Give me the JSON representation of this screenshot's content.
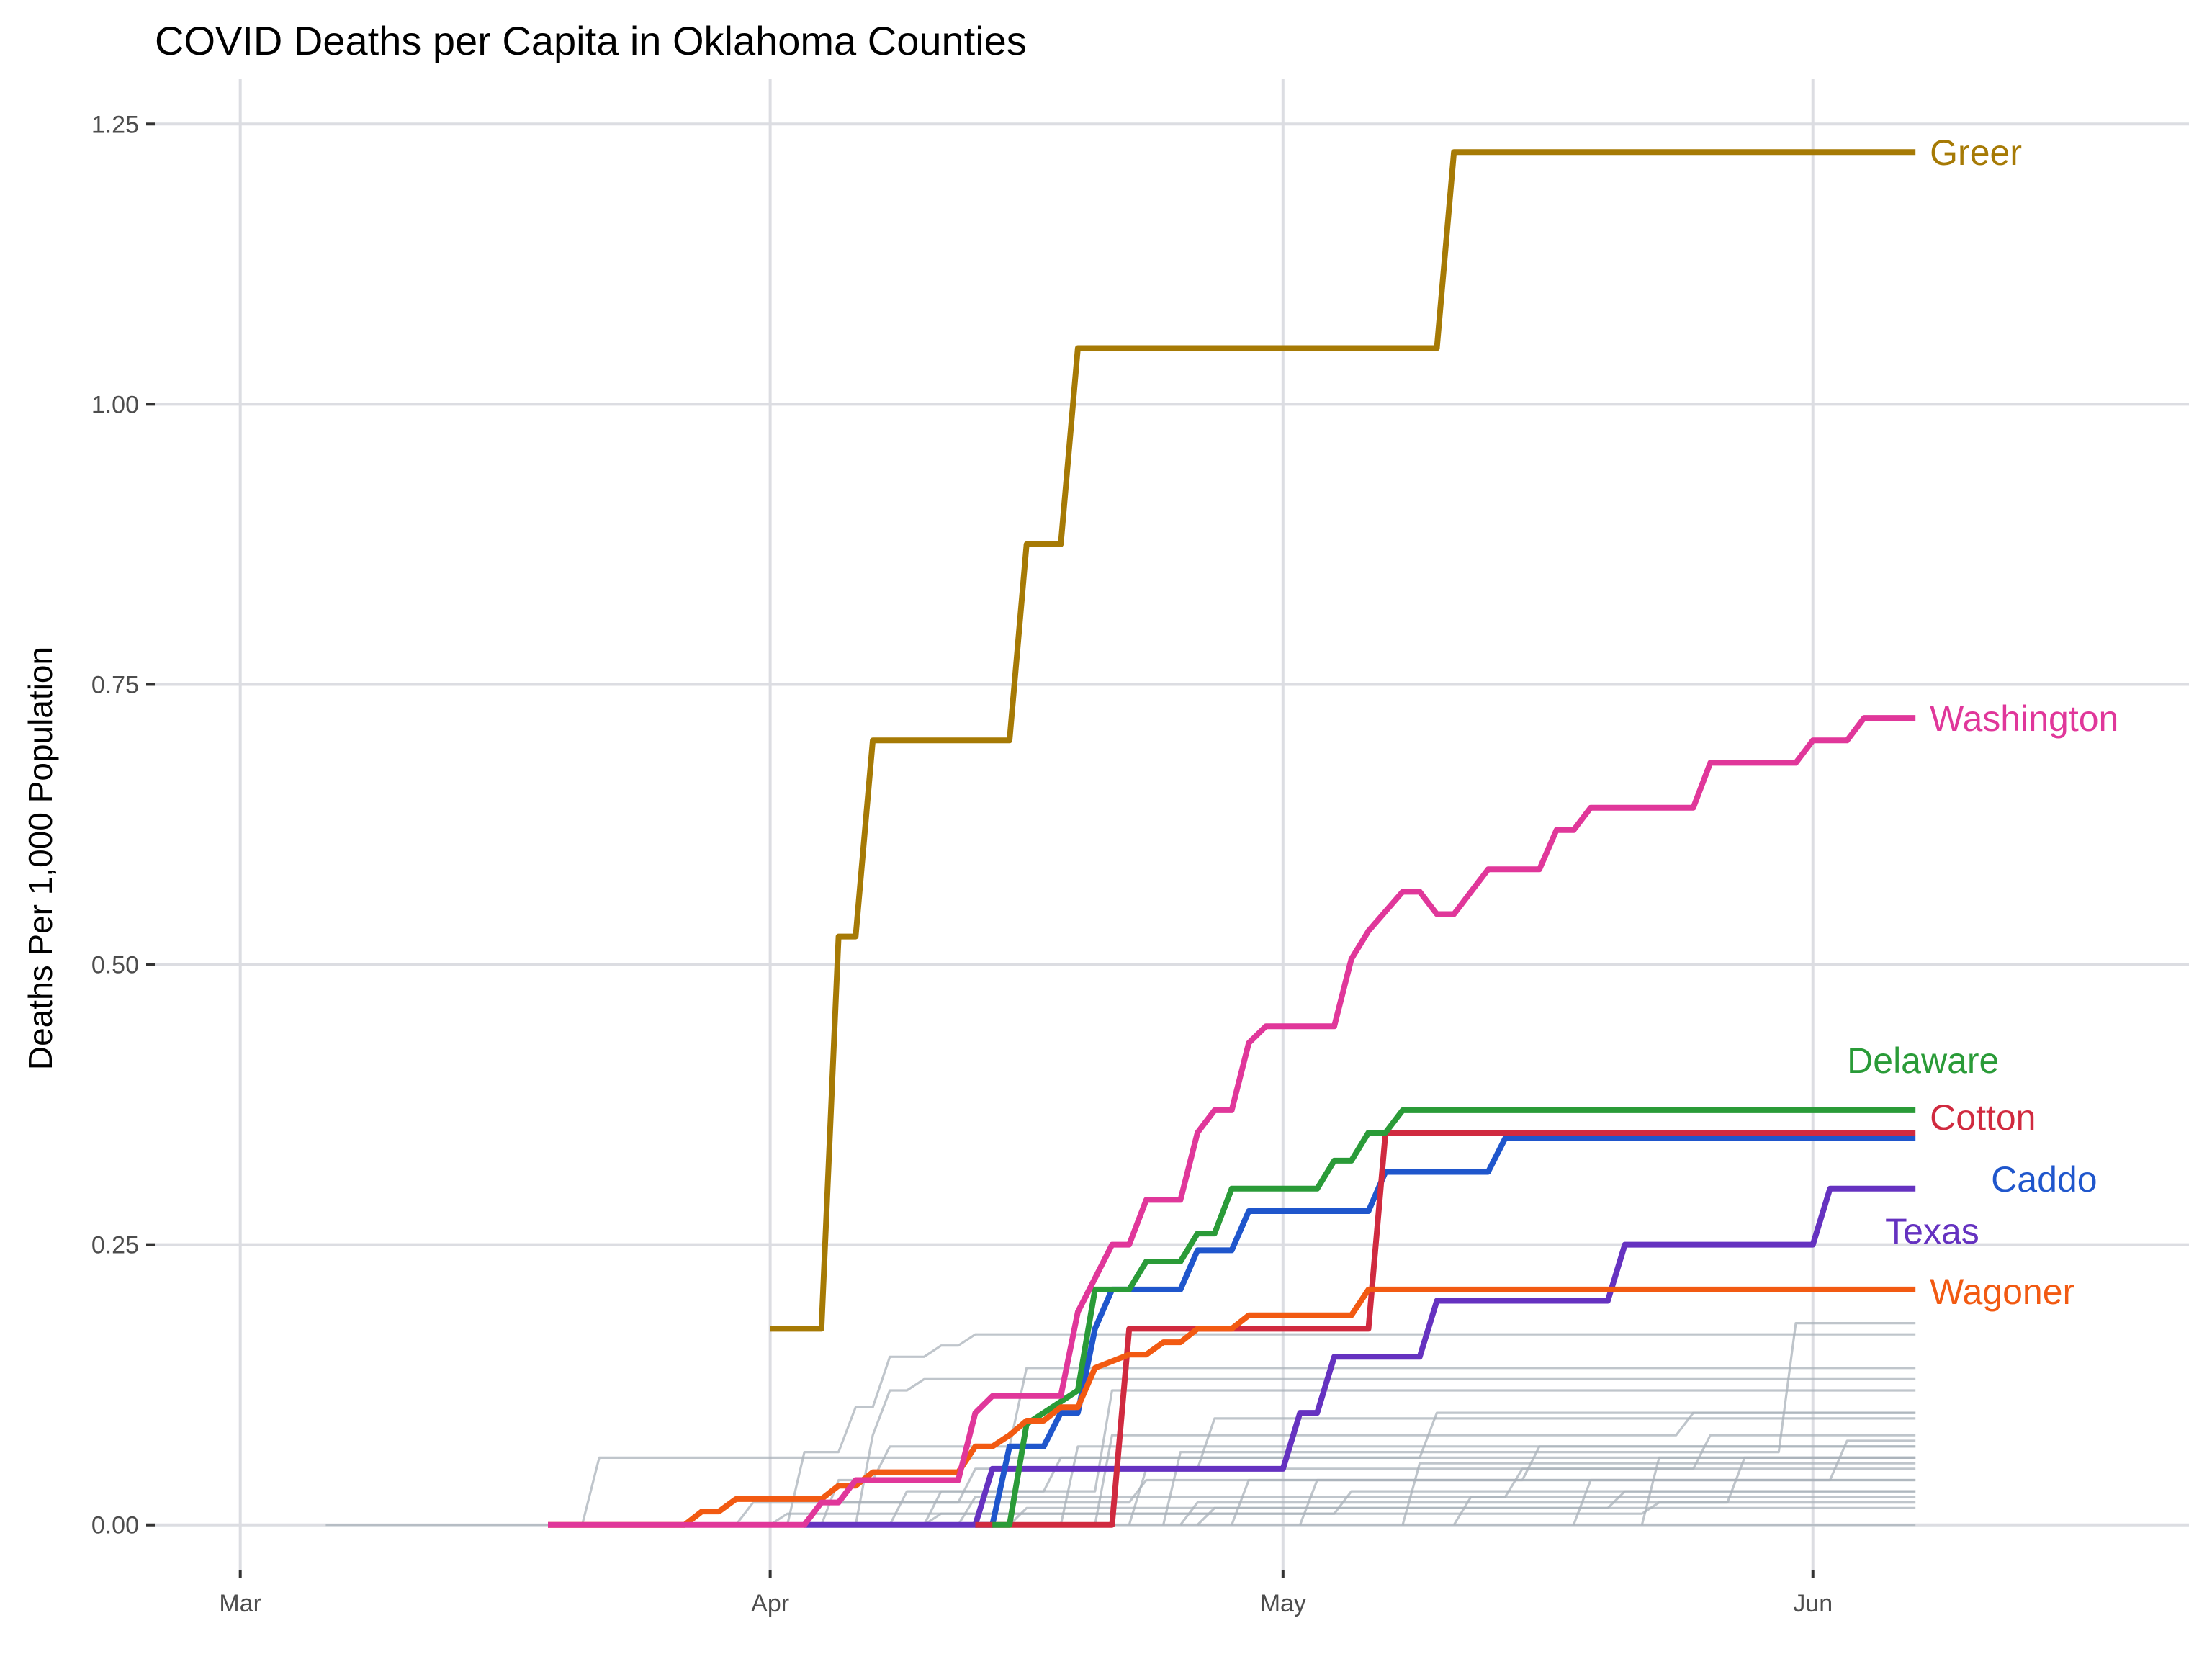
{
  "chart_data": {
    "type": "line",
    "title": "COVID Deaths per Capita in Oklahoma Counties",
    "xlabel": "",
    "ylabel": "Deaths Per 1,000 Population",
    "x_ticks": [
      {
        "date": "2020-03-01",
        "label": "Mar"
      },
      {
        "date": "2020-04-01",
        "label": "Apr"
      },
      {
        "date": "2020-05-01",
        "label": "May"
      },
      {
        "date": "2020-06-01",
        "label": "Jun"
      }
    ],
    "y_ticks": [
      {
        "value": 0.0,
        "label": "0.00"
      },
      {
        "value": 0.25,
        "label": "0.25"
      },
      {
        "value": 0.5,
        "label": "0.50"
      },
      {
        "value": 0.75,
        "label": "0.75"
      },
      {
        "value": 1.0,
        "label": "1.00"
      },
      {
        "value": 1.25,
        "label": "1.25"
      }
    ],
    "xlim": [
      "2020-02-25",
      "2020-06-23"
    ],
    "ylim": [
      -0.04,
      1.29
    ],
    "grid": true,
    "highlighted": [
      {
        "name": "Greer",
        "color": "#A67A05",
        "points": [
          [
            "2020-04-01",
            0.175
          ],
          [
            "2020-04-04",
            0.175
          ],
          [
            "2020-04-05",
            0.525
          ],
          [
            "2020-04-06",
            0.525
          ],
          [
            "2020-04-07",
            0.7
          ],
          [
            "2020-04-15",
            0.7
          ],
          [
            "2020-04-16",
            0.875
          ],
          [
            "2020-04-18",
            0.875
          ],
          [
            "2020-04-19",
            1.05
          ],
          [
            "2020-05-10",
            1.05
          ],
          [
            "2020-05-11",
            1.225
          ],
          [
            "2020-06-07",
            1.225
          ]
        ]
      },
      {
        "name": "Washington",
        "color": "#E0379A",
        "points": [
          [
            "2020-03-19",
            0.0
          ],
          [
            "2020-04-03",
            0.0
          ],
          [
            "2020-04-04",
            0.02
          ],
          [
            "2020-04-05",
            0.02
          ],
          [
            "2020-04-06",
            0.04
          ],
          [
            "2020-04-12",
            0.04
          ],
          [
            "2020-04-13",
            0.1
          ],
          [
            "2020-04-14",
            0.115
          ],
          [
            "2020-04-18",
            0.115
          ],
          [
            "2020-04-19",
            0.19
          ],
          [
            "2020-04-20",
            0.22
          ],
          [
            "2020-04-21",
            0.25
          ],
          [
            "2020-04-22",
            0.25
          ],
          [
            "2020-04-23",
            0.29
          ],
          [
            "2020-04-25",
            0.29
          ],
          [
            "2020-04-26",
            0.35
          ],
          [
            "2020-04-27",
            0.37
          ],
          [
            "2020-04-28",
            0.37
          ],
          [
            "2020-04-29",
            0.43
          ],
          [
            "2020-04-30",
            0.445
          ],
          [
            "2020-05-04",
            0.445
          ],
          [
            "2020-05-05",
            0.505
          ],
          [
            "2020-05-06",
            0.53
          ],
          [
            "2020-05-08",
            0.565
          ],
          [
            "2020-05-09",
            0.565
          ],
          [
            "2020-05-10",
            0.545
          ],
          [
            "2020-05-11",
            0.545
          ],
          [
            "2020-05-13",
            0.585
          ],
          [
            "2020-05-16",
            0.585
          ],
          [
            "2020-05-17",
            0.62
          ],
          [
            "2020-05-18",
            0.62
          ],
          [
            "2020-05-19",
            0.64
          ],
          [
            "2020-05-25",
            0.64
          ],
          [
            "2020-05-26",
            0.68
          ],
          [
            "2020-05-31",
            0.68
          ],
          [
            "2020-06-01",
            0.7
          ],
          [
            "2020-06-03",
            0.7
          ],
          [
            "2020-06-04",
            0.72
          ],
          [
            "2020-06-07",
            0.72
          ]
        ]
      },
      {
        "name": "Delaware",
        "color": "#2A9B38",
        "points": [
          [
            "2020-04-14",
            0.0
          ],
          [
            "2020-04-15",
            0.0
          ],
          [
            "2020-04-16",
            0.09
          ],
          [
            "2020-04-17",
            0.1
          ],
          [
            "2020-04-19",
            0.12
          ],
          [
            "2020-04-20",
            0.21
          ],
          [
            "2020-04-22",
            0.21
          ],
          [
            "2020-04-23",
            0.235
          ],
          [
            "2020-04-25",
            0.235
          ],
          [
            "2020-04-26",
            0.26
          ],
          [
            "2020-04-27",
            0.26
          ],
          [
            "2020-04-28",
            0.3
          ],
          [
            "2020-05-03",
            0.3
          ],
          [
            "2020-05-04",
            0.325
          ],
          [
            "2020-05-05",
            0.325
          ],
          [
            "2020-05-06",
            0.35
          ],
          [
            "2020-05-07",
            0.35
          ],
          [
            "2020-05-08",
            0.37
          ],
          [
            "2020-06-07",
            0.37
          ]
        ]
      },
      {
        "name": "Cotton",
        "color": "#D02A3F",
        "points": [
          [
            "2020-04-13",
            0.0
          ],
          [
            "2020-04-21",
            0.0
          ],
          [
            "2020-04-22",
            0.175
          ],
          [
            "2020-05-06",
            0.175
          ],
          [
            "2020-05-07",
            0.35
          ],
          [
            "2020-06-07",
            0.35
          ]
        ]
      },
      {
        "name": "Caddo",
        "color": "#1F56CC",
        "points": [
          [
            "2020-04-13",
            0.0
          ],
          [
            "2020-04-14",
            0.0
          ],
          [
            "2020-04-15",
            0.07
          ],
          [
            "2020-04-17",
            0.07
          ],
          [
            "2020-04-18",
            0.1
          ],
          [
            "2020-04-19",
            0.1
          ],
          [
            "2020-04-20",
            0.175
          ],
          [
            "2020-04-21",
            0.21
          ],
          [
            "2020-04-25",
            0.21
          ],
          [
            "2020-04-26",
            0.245
          ],
          [
            "2020-04-28",
            0.245
          ],
          [
            "2020-04-29",
            0.28
          ],
          [
            "2020-05-06",
            0.28
          ],
          [
            "2020-05-07",
            0.315
          ],
          [
            "2020-05-13",
            0.315
          ],
          [
            "2020-05-14",
            0.345
          ],
          [
            "2020-06-07",
            0.345
          ]
        ]
      },
      {
        "name": "Texas",
        "color": "#6532C0",
        "points": [
          [
            "2020-04-03",
            0.0
          ],
          [
            "2020-04-13",
            0.0
          ],
          [
            "2020-04-14",
            0.05
          ],
          [
            "2020-05-01",
            0.05
          ],
          [
            "2020-05-02",
            0.1
          ],
          [
            "2020-05-03",
            0.1
          ],
          [
            "2020-05-04",
            0.15
          ],
          [
            "2020-05-09",
            0.15
          ],
          [
            "2020-05-10",
            0.2
          ],
          [
            "2020-05-20",
            0.2
          ],
          [
            "2020-05-21",
            0.25
          ],
          [
            "2020-06-01",
            0.25
          ],
          [
            "2020-06-02",
            0.3
          ],
          [
            "2020-06-07",
            0.3
          ]
        ]
      },
      {
        "name": "Wagoner",
        "color": "#F25A12",
        "points": [
          [
            "2020-03-19",
            0.0
          ],
          [
            "2020-03-27",
            0.0
          ],
          [
            "2020-03-28",
            0.012
          ],
          [
            "2020-03-29",
            0.012
          ],
          [
            "2020-03-30",
            0.023
          ],
          [
            "2020-04-04",
            0.023
          ],
          [
            "2020-04-05",
            0.035
          ],
          [
            "2020-04-06",
            0.035
          ],
          [
            "2020-04-07",
            0.047
          ],
          [
            "2020-04-12",
            0.047
          ],
          [
            "2020-04-13",
            0.07
          ],
          [
            "2020-04-14",
            0.07
          ],
          [
            "2020-04-15",
            0.08
          ],
          [
            "2020-04-16",
            0.093
          ],
          [
            "2020-04-17",
            0.093
          ],
          [
            "2020-04-18",
            0.105
          ],
          [
            "2020-04-19",
            0.105
          ],
          [
            "2020-04-20",
            0.14
          ],
          [
            "2020-04-22",
            0.152
          ],
          [
            "2020-04-23",
            0.152
          ],
          [
            "2020-04-24",
            0.163
          ],
          [
            "2020-04-25",
            0.163
          ],
          [
            "2020-04-26",
            0.175
          ],
          [
            "2020-04-28",
            0.175
          ],
          [
            "2020-04-29",
            0.187
          ],
          [
            "2020-05-05",
            0.187
          ],
          [
            "2020-05-06",
            0.21
          ],
          [
            "2020-06-07",
            0.21
          ]
        ]
      }
    ],
    "background_series_color": "#A9B1BA",
    "background_series": [
      [
        [
          "2020-03-06",
          0.0
        ],
        [
          "2020-06-07",
          0.0
        ]
      ],
      [
        [
          "2020-03-19",
          0.0
        ],
        [
          "2020-03-21",
          0.0
        ],
        [
          "2020-03-22",
          0.06
        ],
        [
          "2020-06-07",
          0.06
        ]
      ],
      [
        [
          "2020-04-02",
          0.0
        ],
        [
          "2020-04-03",
          0.065
        ],
        [
          "2020-04-05",
          0.065
        ],
        [
          "2020-04-06",
          0.105
        ],
        [
          "2020-04-07",
          0.105
        ],
        [
          "2020-04-08",
          0.15
        ],
        [
          "2020-04-10",
          0.15
        ],
        [
          "2020-04-11",
          0.16
        ],
        [
          "2020-04-12",
          0.16
        ],
        [
          "2020-04-13",
          0.17
        ],
        [
          "2020-06-07",
          0.17
        ]
      ],
      [
        [
          "2020-04-06",
          0.0
        ],
        [
          "2020-04-07",
          0.08
        ],
        [
          "2020-04-08",
          0.12
        ],
        [
          "2020-04-09",
          0.12
        ],
        [
          "2020-04-10",
          0.13
        ],
        [
          "2020-06-07",
          0.13
        ]
      ],
      [
        [
          "2020-04-04",
          0.0
        ],
        [
          "2020-04-05",
          0.04
        ],
        [
          "2020-04-07",
          0.04
        ],
        [
          "2020-04-08",
          0.07
        ],
        [
          "2020-04-15",
          0.07
        ],
        [
          "2020-04-16",
          0.14
        ],
        [
          "2020-06-07",
          0.14
        ]
      ],
      [
        [
          "2020-04-10",
          0.0
        ],
        [
          "2020-04-11",
          0.03
        ],
        [
          "2020-04-20",
          0.03
        ],
        [
          "2020-04-21",
          0.12
        ],
        [
          "2020-06-07",
          0.12
        ]
      ],
      [
        [
          "2020-04-03",
          0.0
        ],
        [
          "2020-04-04",
          0.02
        ],
        [
          "2020-04-12",
          0.02
        ],
        [
          "2020-04-13",
          0.05
        ],
        [
          "2020-04-26",
          0.05
        ],
        [
          "2020-04-27",
          0.095
        ],
        [
          "2020-06-07",
          0.095
        ]
      ],
      [
        [
          "2020-04-08",
          0.0
        ],
        [
          "2020-04-09",
          0.03
        ],
        [
          "2020-04-17",
          0.03
        ],
        [
          "2020-04-18",
          0.06
        ],
        [
          "2020-05-09",
          0.06
        ],
        [
          "2020-05-10",
          0.1
        ],
        [
          "2020-06-07",
          0.1
        ]
      ],
      [
        [
          "2020-03-30",
          0.0
        ],
        [
          "2020-03-31",
          0.02
        ],
        [
          "2020-04-22",
          0.02
        ],
        [
          "2020-04-23",
          0.04
        ],
        [
          "2020-06-07",
          0.04
        ]
      ],
      [
        [
          "2020-04-12",
          0.0
        ],
        [
          "2020-04-13",
          0.025
        ],
        [
          "2020-05-14",
          0.025
        ],
        [
          "2020-05-15",
          0.05
        ],
        [
          "2020-06-07",
          0.05
        ]
      ],
      [
        [
          "2020-04-18",
          0.0
        ],
        [
          "2020-04-19",
          0.07
        ],
        [
          "2020-06-07",
          0.07
        ]
      ],
      [
        [
          "2020-04-15",
          0.0
        ],
        [
          "2020-04-16",
          0.015
        ],
        [
          "2020-05-20",
          0.015
        ],
        [
          "2020-05-21",
          0.03
        ],
        [
          "2020-06-07",
          0.03
        ]
      ],
      [
        [
          "2020-04-22",
          0.0
        ],
        [
          "2020-04-23",
          0.05
        ],
        [
          "2020-05-25",
          0.05
        ],
        [
          "2020-05-26",
          0.08
        ],
        [
          "2020-06-07",
          0.08
        ]
      ],
      [
        [
          "2020-04-25",
          0.0
        ],
        [
          "2020-04-26",
          0.02
        ],
        [
          "2020-05-27",
          0.02
        ],
        [
          "2020-05-28",
          0.06
        ],
        [
          "2020-06-07",
          0.06
        ]
      ],
      [
        [
          "2020-04-01",
          0.0
        ],
        [
          "2020-04-02",
          0.01
        ],
        [
          "2020-05-04",
          0.01
        ],
        [
          "2020-05-05",
          0.03
        ],
        [
          "2020-06-07",
          0.03
        ]
      ],
      [
        [
          "2020-05-08",
          0.0
        ],
        [
          "2020-05-09",
          0.055
        ],
        [
          "2020-06-07",
          0.055
        ]
      ],
      [
        [
          "2020-04-24",
          0.0
        ],
        [
          "2020-04-25",
          0.065
        ],
        [
          "2020-05-30",
          0.065
        ],
        [
          "2020-05-31",
          0.18
        ],
        [
          "2020-06-07",
          0.18
        ]
      ],
      [
        [
          "2020-04-28",
          0.0
        ],
        [
          "2020-04-29",
          0.04
        ],
        [
          "2020-05-15",
          0.04
        ],
        [
          "2020-05-16",
          0.07
        ],
        [
          "2020-06-07",
          0.07
        ]
      ],
      [
        [
          "2020-04-10",
          0.0
        ],
        [
          "2020-04-11",
          0.01
        ],
        [
          "2020-05-22",
          0.01
        ],
        [
          "2020-05-23",
          0.02
        ],
        [
          "2020-06-07",
          0.02
        ]
      ],
      [
        [
          "2020-05-11",
          0.0
        ],
        [
          "2020-05-12",
          0.025
        ],
        [
          "2020-06-07",
          0.025
        ]
      ],
      [
        [
          "2020-05-18",
          0.0
        ],
        [
          "2020-05-19",
          0.04
        ],
        [
          "2020-06-02",
          0.04
        ],
        [
          "2020-06-03",
          0.075
        ],
        [
          "2020-06-07",
          0.075
        ]
      ],
      [
        [
          "2020-04-20",
          0.0
        ],
        [
          "2020-04-21",
          0.08
        ],
        [
          "2020-05-24",
          0.08
        ],
        [
          "2020-05-25",
          0.1
        ],
        [
          "2020-06-07",
          0.1
        ]
      ],
      [
        [
          "2020-05-02",
          0.0
        ],
        [
          "2020-05-03",
          0.04
        ],
        [
          "2020-06-07",
          0.04
        ]
      ],
      [
        [
          "2020-04-26",
          0.0
        ],
        [
          "2020-04-27",
          0.015
        ],
        [
          "2020-06-07",
          0.015
        ]
      ],
      [
        [
          "2020-05-22",
          0.0
        ],
        [
          "2020-05-23",
          0.06
        ],
        [
          "2020-06-07",
          0.06
        ]
      ]
    ]
  }
}
